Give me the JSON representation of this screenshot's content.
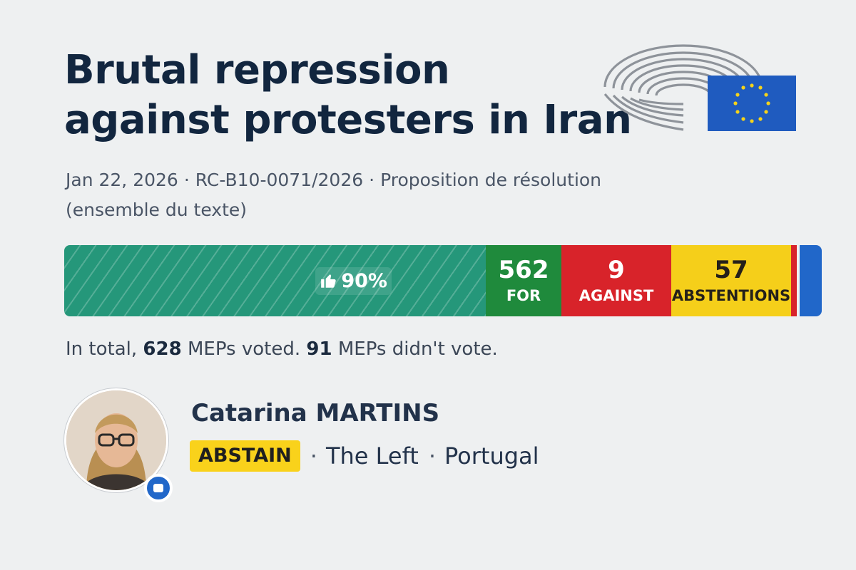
{
  "title": {
    "line1": "Brutal repression",
    "line2": "against protesters in Iran"
  },
  "meta": {
    "date": "Jan 22, 2026",
    "reference": "RC-B10-0071/2026",
    "document_type": "Proposition de résolution",
    "document_scope": "(ensemble du texte)"
  },
  "vote_bar": {
    "percent_label": "90%",
    "for_count": "562",
    "for_label": "FOR",
    "against_count": "9",
    "against_label": "AGAINST",
    "abstentions_count": "57",
    "abstentions_label": "ABSTENTIONS"
  },
  "totals": {
    "prefix": "In total,",
    "voted": "628",
    "voted_suffix": "MEPs voted.",
    "not_voted": "91",
    "not_voted_suffix": "MEPs didn't vote."
  },
  "member": {
    "name": "Catarina MARTINS",
    "vote": "ABSTAIN",
    "group": "The Left",
    "country": "Portugal"
  },
  "icons": {
    "logo": "european-parliament-logo",
    "thumb": "thumbs-up-icon",
    "badge": "message-badge-icon"
  },
  "colors": {
    "for": "#1f8a3c",
    "against": "#d8232a",
    "abstain": "#f5cf1a",
    "percent_bg": "#25977a",
    "eu_blue": "#2167c9",
    "title": "#12263f"
  }
}
